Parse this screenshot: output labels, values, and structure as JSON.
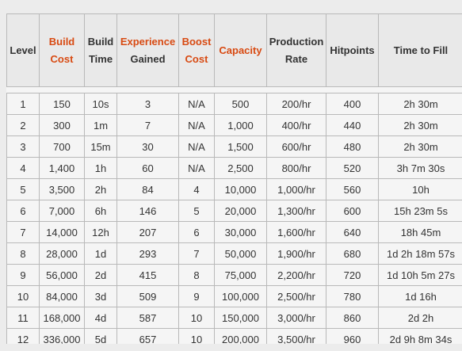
{
  "table": {
    "headers": [
      {
        "lines": [
          "Level"
        ],
        "accent": false
      },
      {
        "lines": [
          "Build",
          "Cost"
        ],
        "accent": true
      },
      {
        "lines": [
          "Build",
          "Time"
        ],
        "accent": false
      },
      {
        "lines": [
          "Experience",
          "Gained"
        ],
        "accent": "first"
      },
      {
        "lines": [
          "Boost",
          "Cost"
        ],
        "accent": true
      },
      {
        "lines": [
          "Capacity"
        ],
        "accent": true
      },
      {
        "lines": [
          "Production",
          "Rate"
        ],
        "accent": false
      },
      {
        "lines": [
          "Hitpoints"
        ],
        "accent": false
      },
      {
        "lines": [
          "Time to Fill"
        ],
        "accent": false
      }
    ],
    "rows": [
      [
        "1",
        "150",
        "10s",
        "3",
        "N/A",
        "500",
        "200/hr",
        "400",
        "2h 30m"
      ],
      [
        "2",
        "300",
        "1m",
        "7",
        "N/A",
        "1,000",
        "400/hr",
        "440",
        "2h 30m"
      ],
      [
        "3",
        "700",
        "15m",
        "30",
        "N/A",
        "1,500",
        "600/hr",
        "480",
        "2h 30m"
      ],
      [
        "4",
        "1,400",
        "1h",
        "60",
        "N/A",
        "2,500",
        "800/hr",
        "520",
        "3h 7m 30s"
      ],
      [
        "5",
        "3,500",
        "2h",
        "84",
        "4",
        "10,000",
        "1,000/hr",
        "560",
        "10h"
      ],
      [
        "6",
        "7,000",
        "6h",
        "146",
        "5",
        "20,000",
        "1,300/hr",
        "600",
        "15h 23m 5s"
      ],
      [
        "7",
        "14,000",
        "12h",
        "207",
        "6",
        "30,000",
        "1,600/hr",
        "640",
        "18h 45m"
      ],
      [
        "8",
        "28,000",
        "1d",
        "293",
        "7",
        "50,000",
        "1,900/hr",
        "680",
        "1d 2h 18m 57s"
      ],
      [
        "9",
        "56,000",
        "2d",
        "415",
        "8",
        "75,000",
        "2,200/hr",
        "720",
        "1d 10h 5m 27s"
      ],
      [
        "10",
        "84,000",
        "3d",
        "509",
        "9",
        "100,000",
        "2,500/hr",
        "780",
        "1d 16h"
      ],
      [
        "11",
        "168,000",
        "4d",
        "587",
        "10",
        "150,000",
        "3,000/hr",
        "860",
        "2d 2h"
      ],
      [
        "12",
        "336,000",
        "5d",
        "657",
        "10",
        "200,000",
        "3,500/hr",
        "960",
        "2d 9h 8m 34s"
      ]
    ]
  },
  "colors": {
    "accent": "#d84a12",
    "text": "#333333",
    "border": "#b9b9b9",
    "header_bg": "#e9e9e9",
    "cell_bg": "#f5f5f5",
    "page_bg": "#ececec"
  }
}
